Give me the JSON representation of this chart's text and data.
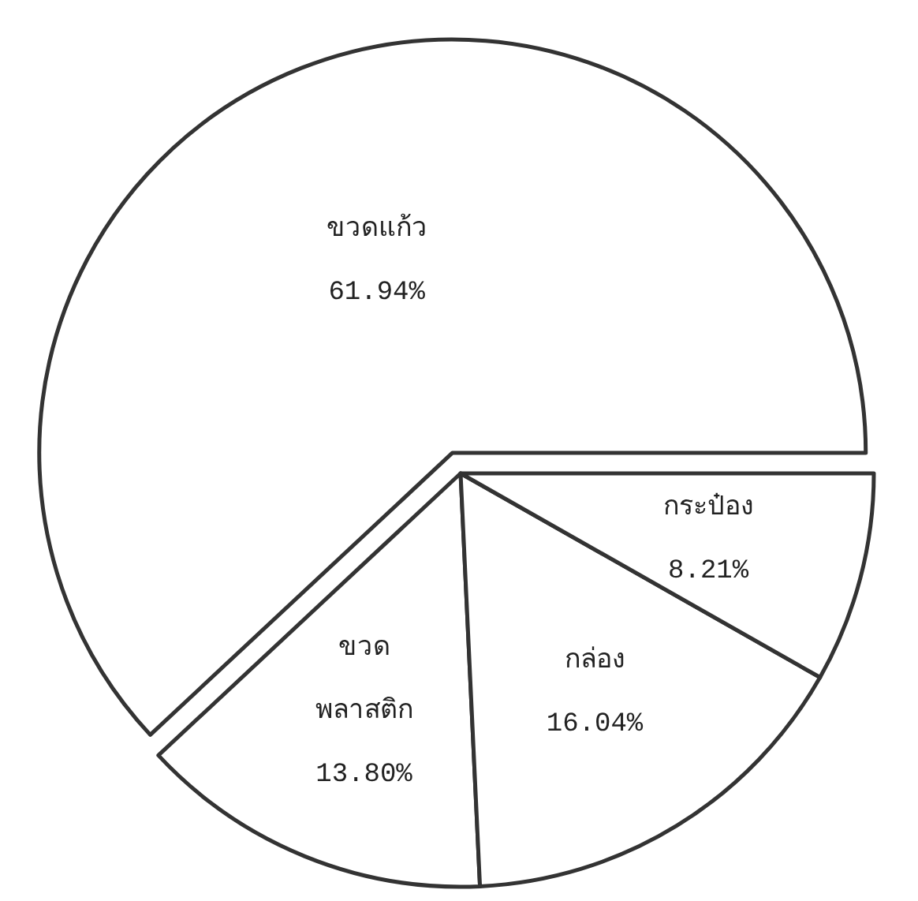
{
  "chart_data": {
    "type": "pie",
    "categories": [
      "ขวดแก้ว",
      "ขวด พลาสติก",
      "กล่อง",
      "กระป๋อง"
    ],
    "values": [
      61.94,
      13.8,
      16.04,
      8.21
    ],
    "value_labels": [
      "61.94%",
      "13.80%",
      "16.04%",
      "8.21%"
    ],
    "colors": [
      "#ffffff",
      "#ffffff",
      "#ffffff",
      "#ffffff"
    ]
  }
}
